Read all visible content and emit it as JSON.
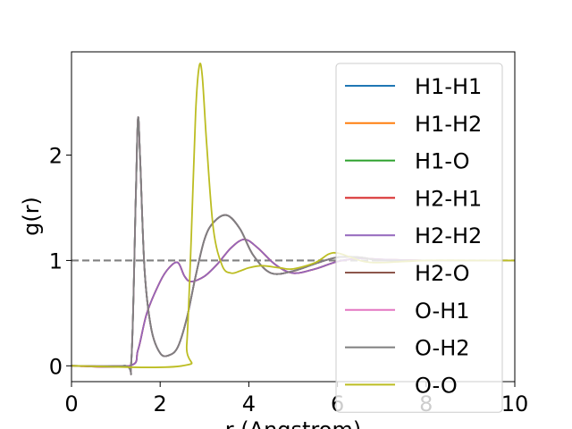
{
  "chart_data": {
    "type": "line",
    "title": "",
    "xlabel": "r (Angstrom)",
    "ylabel": "g(r)",
    "xlim": [
      0,
      10
    ],
    "ylim": [
      -0.15,
      2.98
    ],
    "xticks": [
      {
        "value": 0,
        "label": "0"
      },
      {
        "value": 2,
        "label": "2"
      },
      {
        "value": 4,
        "label": "4"
      },
      {
        "value": 6,
        "label": "6"
      },
      {
        "value": 8,
        "label": "8"
      },
      {
        "value": 10,
        "label": "10"
      }
    ],
    "yticks": [
      {
        "value": 0,
        "label": "0"
      },
      {
        "value": 1,
        "label": "1"
      },
      {
        "value": 2,
        "label": "2"
      }
    ],
    "grid": false,
    "legend_position": "top-right",
    "reference_line": {
      "y": 1,
      "style": "dashed",
      "color": "#808080"
    },
    "series": [
      {
        "name": "H1-H1",
        "color": "#1f77b4",
        "x": [
          0,
          1.2,
          1.35,
          1.45,
          1.5,
          1.55,
          1.65,
          1.8,
          2.0,
          2.2,
          2.4,
          2.6,
          2.8,
          3.0,
          3.2,
          3.5,
          3.8,
          4.1,
          4.5,
          5.0,
          5.5,
          6.0,
          6.5,
          7.0,
          8.0,
          9.0,
          10.0
        ],
        "y": [
          0,
          0,
          0.05,
          1.6,
          2.35,
          1.95,
          0.9,
          0.35,
          0.12,
          0.1,
          0.18,
          0.45,
          0.85,
          1.2,
          1.36,
          1.43,
          1.3,
          1.05,
          0.88,
          0.9,
          0.97,
          1.03,
          1.03,
          1.0,
          1.0,
          1.0,
          1.0
        ]
      },
      {
        "name": "H1-H2",
        "color": "#ff7f0e",
        "x": [
          0,
          1.3,
          1.5,
          1.7,
          2.0,
          2.2,
          2.4,
          2.55,
          2.7,
          3.0,
          3.3,
          3.6,
          3.9,
          4.2,
          4.6,
          5.0,
          5.5,
          6.0,
          6.5,
          7.0,
          8.0,
          9.0,
          10.0
        ],
        "y": [
          0,
          0,
          0.15,
          0.5,
          0.8,
          0.93,
          0.98,
          0.85,
          0.8,
          0.85,
          0.97,
          1.12,
          1.2,
          1.12,
          0.96,
          0.88,
          0.92,
          0.99,
          1.02,
          1.01,
          1.0,
          1.0,
          1.0
        ]
      },
      {
        "name": "H1-O",
        "color": "#2ca02c",
        "x": [
          0,
          1.2,
          1.35,
          1.45,
          1.5,
          1.55,
          1.65,
          1.8,
          2.0,
          2.2,
          2.4,
          2.6,
          2.8,
          3.0,
          3.2,
          3.5,
          3.8,
          4.1,
          4.5,
          5.0,
          5.5,
          6.0,
          6.5,
          7.0,
          8.0,
          9.0,
          10.0
        ],
        "y": [
          0,
          0,
          0.05,
          1.6,
          2.35,
          1.95,
          0.9,
          0.35,
          0.12,
          0.1,
          0.18,
          0.45,
          0.85,
          1.2,
          1.36,
          1.43,
          1.3,
          1.05,
          0.88,
          0.9,
          0.97,
          1.03,
          1.03,
          1.0,
          1.0,
          1.0,
          1.0
        ]
      },
      {
        "name": "H2-H1",
        "color": "#d62728",
        "x": [
          0,
          1.3,
          1.5,
          1.7,
          2.0,
          2.2,
          2.4,
          2.55,
          2.7,
          3.0,
          3.3,
          3.6,
          3.9,
          4.2,
          4.6,
          5.0,
          5.5,
          6.0,
          6.5,
          7.0,
          8.0,
          9.0,
          10.0
        ],
        "y": [
          0,
          0,
          0.15,
          0.5,
          0.8,
          0.93,
          0.98,
          0.85,
          0.8,
          0.85,
          0.97,
          1.12,
          1.2,
          1.12,
          0.96,
          0.88,
          0.92,
          0.99,
          1.02,
          1.01,
          1.0,
          1.0,
          1.0
        ]
      },
      {
        "name": "H2-H2",
        "color": "#9467bd",
        "x": [
          0,
          1.3,
          1.5,
          1.7,
          2.0,
          2.2,
          2.4,
          2.55,
          2.7,
          3.0,
          3.3,
          3.6,
          3.9,
          4.2,
          4.6,
          5.0,
          5.5,
          6.0,
          6.5,
          7.0,
          8.0,
          9.0,
          10.0
        ],
        "y": [
          0,
          0,
          0.15,
          0.5,
          0.8,
          0.93,
          0.98,
          0.85,
          0.8,
          0.85,
          0.97,
          1.12,
          1.2,
          1.12,
          0.96,
          0.88,
          0.92,
          0.99,
          1.02,
          1.01,
          1.0,
          1.0,
          1.0
        ]
      },
      {
        "name": "H2-O",
        "color": "#8c564b",
        "x": [
          0,
          1.2,
          1.35,
          1.45,
          1.5,
          1.55,
          1.65,
          1.8,
          2.0,
          2.2,
          2.4,
          2.6,
          2.8,
          3.0,
          3.2,
          3.5,
          3.8,
          4.1,
          4.5,
          5.0,
          5.5,
          6.0,
          6.5,
          7.0,
          8.0,
          9.0,
          10.0
        ],
        "y": [
          0,
          0,
          0.05,
          1.6,
          2.35,
          1.95,
          0.9,
          0.35,
          0.12,
          0.1,
          0.18,
          0.45,
          0.85,
          1.2,
          1.36,
          1.43,
          1.3,
          1.05,
          0.88,
          0.9,
          0.97,
          1.03,
          1.03,
          1.0,
          1.0,
          1.0,
          1.0
        ]
      },
      {
        "name": "O-H1",
        "color": "#e377c2",
        "x": [
          0,
          1.2,
          1.35,
          1.45,
          1.5,
          1.55,
          1.65,
          1.8,
          2.0,
          2.2,
          2.4,
          2.6,
          2.8,
          3.0,
          3.2,
          3.5,
          3.8,
          4.1,
          4.5,
          5.0,
          5.5,
          6.0,
          6.5,
          7.0,
          8.0,
          9.0,
          10.0
        ],
        "y": [
          0,
          0,
          0.05,
          1.6,
          2.35,
          1.95,
          0.9,
          0.35,
          0.12,
          0.1,
          0.18,
          0.45,
          0.85,
          1.2,
          1.36,
          1.43,
          1.3,
          1.05,
          0.88,
          0.9,
          0.97,
          1.03,
          1.03,
          1.0,
          1.0,
          1.0,
          1.0
        ]
      },
      {
        "name": "O-H2",
        "color": "#7f7f7f",
        "x": [
          0,
          1.2,
          1.35,
          1.45,
          1.5,
          1.55,
          1.65,
          1.8,
          2.0,
          2.2,
          2.4,
          2.6,
          2.8,
          3.0,
          3.2,
          3.5,
          3.8,
          4.1,
          4.5,
          5.0,
          5.5,
          6.0,
          6.5,
          7.0,
          8.0,
          9.0,
          10.0
        ],
        "y": [
          0,
          0,
          0.05,
          1.6,
          2.35,
          1.95,
          0.9,
          0.35,
          0.12,
          0.1,
          0.18,
          0.45,
          0.85,
          1.2,
          1.36,
          1.43,
          1.3,
          1.05,
          0.88,
          0.9,
          0.97,
          1.03,
          1.03,
          1.0,
          1.0,
          1.0,
          1.0
        ]
      },
      {
        "name": "O-O",
        "color": "#bcbd22",
        "x": [
          0,
          2.5,
          2.6,
          2.7,
          2.8,
          2.88,
          2.95,
          3.05,
          3.2,
          3.4,
          3.6,
          3.8,
          4.0,
          4.3,
          4.7,
          5.0,
          5.5,
          5.8,
          6.0,
          6.3,
          6.6,
          7.0,
          8.0,
          9.0,
          10.0
        ],
        "y": [
          0,
          0,
          0.2,
          1.2,
          2.4,
          2.84,
          2.75,
          2.1,
          1.3,
          0.95,
          0.88,
          0.9,
          0.93,
          0.95,
          0.93,
          0.92,
          0.98,
          1.06,
          1.07,
          1.03,
          0.99,
          0.98,
          1.0,
          1.0,
          1.0
        ]
      }
    ]
  }
}
